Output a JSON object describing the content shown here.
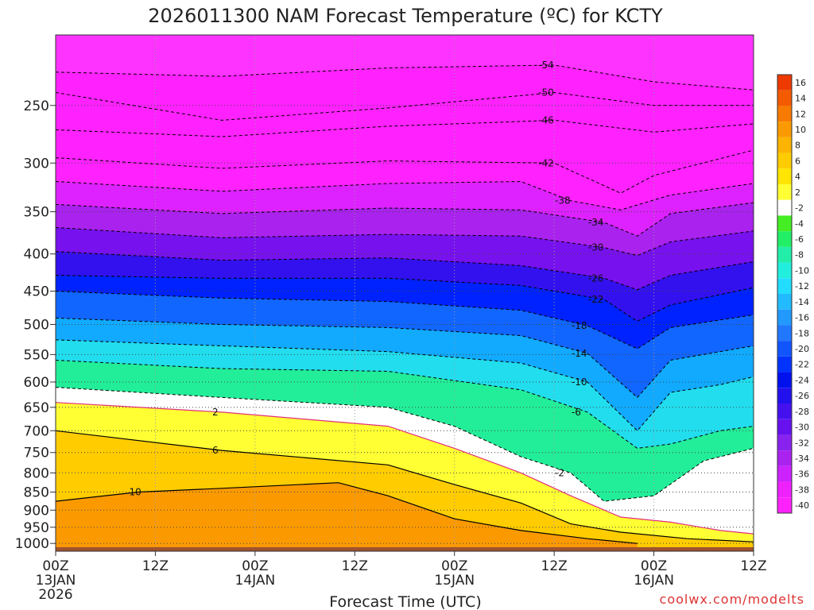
{
  "chart_data": {
    "type": "heatmap",
    "title": "2026011300 NAM Forecast Temperature (ºC) for KCTY",
    "xlabel": "Forecast Time (UTC)",
    "ylabel": "",
    "y_scale": "log-pressure",
    "ylim": [
      1025,
      200
    ],
    "y_ticks": [
      250,
      300,
      350,
      400,
      450,
      500,
      550,
      600,
      650,
      700,
      750,
      800,
      850,
      900,
      950,
      1000
    ],
    "xlim": [
      0,
      84
    ],
    "x_ticks": [
      {
        "hour": 0,
        "label": "00Z",
        "date": "13JAN",
        "year": "2026"
      },
      {
        "hour": 12,
        "label": "12Z",
        "date": "",
        "year": ""
      },
      {
        "hour": 24,
        "label": "00Z",
        "date": "14JAN",
        "year": ""
      },
      {
        "hour": 36,
        "label": "12Z",
        "date": "",
        "year": ""
      },
      {
        "hour": 48,
        "label": "00Z",
        "date": "15JAN",
        "year": ""
      },
      {
        "hour": 60,
        "label": "12Z",
        "date": "",
        "year": ""
      },
      {
        "hour": 72,
        "label": "00Z",
        "date": "16JAN",
        "year": ""
      },
      {
        "hour": 84,
        "label": "12Z",
        "date": "",
        "year": ""
      }
    ],
    "isotherms": [
      {
        "t": -54,
        "p": [
          [
            0,
            225
          ],
          [
            20,
            228
          ],
          [
            40,
            222
          ],
          [
            60,
            220
          ],
          [
            72,
            232
          ],
          [
            84,
            238
          ]
        ]
      },
      {
        "t": -50,
        "p": [
          [
            0,
            240
          ],
          [
            20,
            262
          ],
          [
            40,
            252
          ],
          [
            60,
            240
          ],
          [
            72,
            250
          ],
          [
            84,
            250
          ]
        ]
      },
      {
        "t": -46,
        "p": [
          [
            0,
            270
          ],
          [
            20,
            276
          ],
          [
            40,
            267
          ],
          [
            60,
            262
          ],
          [
            72,
            272
          ],
          [
            84,
            265
          ]
        ]
      },
      {
        "t": -42,
        "p": [
          [
            0,
            295
          ],
          [
            20,
            305
          ],
          [
            40,
            298
          ],
          [
            60,
            300
          ],
          [
            68,
            330
          ],
          [
            72,
            312
          ],
          [
            84,
            288
          ]
        ]
      },
      {
        "t": -38,
        "p": [
          [
            0,
            318
          ],
          [
            20,
            328
          ],
          [
            40,
            320
          ],
          [
            56,
            318
          ],
          [
            62,
            338
          ],
          [
            68,
            348
          ],
          [
            74,
            332
          ],
          [
            84,
            320
          ]
        ]
      },
      {
        "t": -34,
        "p": [
          [
            0,
            342
          ],
          [
            20,
            352
          ],
          [
            40,
            346
          ],
          [
            56,
            348
          ],
          [
            66,
            362
          ],
          [
            70,
            378
          ],
          [
            74,
            352
          ],
          [
            84,
            340
          ]
        ]
      },
      {
        "t": -30,
        "p": [
          [
            0,
            368
          ],
          [
            20,
            380
          ],
          [
            40,
            376
          ],
          [
            56,
            378
          ],
          [
            66,
            392
          ],
          [
            70,
            402
          ],
          [
            74,
            385
          ],
          [
            84,
            372
          ]
        ]
      },
      {
        "t": -26,
        "p": [
          [
            0,
            397
          ],
          [
            20,
            408
          ],
          [
            40,
            405
          ],
          [
            56,
            415
          ],
          [
            66,
            432
          ],
          [
            70,
            448
          ],
          [
            74,
            428
          ],
          [
            84,
            410
          ]
        ]
      },
      {
        "t": -22,
        "p": [
          [
            0,
            428
          ],
          [
            20,
            432
          ],
          [
            40,
            432
          ],
          [
            56,
            442
          ],
          [
            66,
            462
          ],
          [
            70,
            495
          ],
          [
            74,
            470
          ],
          [
            84,
            445
          ]
        ]
      },
      {
        "t": -18,
        "p": [
          [
            0,
            450
          ],
          [
            20,
            460
          ],
          [
            40,
            465
          ],
          [
            56,
            478
          ],
          [
            64,
            502
          ],
          [
            70,
            540
          ],
          [
            74,
            505
          ],
          [
            84,
            485
          ]
        ]
      },
      {
        "t": -14,
        "p": [
          [
            0,
            490
          ],
          [
            20,
            500
          ],
          [
            40,
            505
          ],
          [
            56,
            518
          ],
          [
            64,
            548
          ],
          [
            70,
            630
          ],
          [
            74,
            560
          ],
          [
            84,
            535
          ]
        ]
      },
      {
        "t": -10,
        "p": [
          [
            0,
            525
          ],
          [
            20,
            535
          ],
          [
            40,
            545
          ],
          [
            56,
            565
          ],
          [
            64,
            600
          ],
          [
            70,
            700
          ],
          [
            74,
            620
          ],
          [
            80,
            605
          ],
          [
            84,
            590
          ]
        ]
      },
      {
        "t": -6,
        "p": [
          [
            0,
            560
          ],
          [
            20,
            575
          ],
          [
            40,
            580
          ],
          [
            56,
            615
          ],
          [
            64,
            660
          ],
          [
            70,
            740
          ],
          [
            74,
            730
          ],
          [
            80,
            700
          ],
          [
            84,
            690
          ]
        ]
      },
      {
        "t": -2,
        "p": [
          [
            0,
            610
          ],
          [
            20,
            630
          ],
          [
            40,
            650
          ],
          [
            48,
            690
          ],
          [
            56,
            760
          ],
          [
            62,
            800
          ],
          [
            66,
            875
          ],
          [
            72,
            860
          ],
          [
            78,
            770
          ],
          [
            84,
            740
          ]
        ]
      }
    ],
    "warm_isotherms": [
      {
        "t": 2,
        "p": [
          [
            0,
            640
          ],
          [
            20,
            660
          ],
          [
            40,
            690
          ],
          [
            48,
            740
          ],
          [
            56,
            800
          ],
          [
            62,
            860
          ],
          [
            68,
            920
          ],
          [
            74,
            935
          ],
          [
            80,
            960
          ],
          [
            84,
            970
          ]
        ]
      },
      {
        "t": 6,
        "p": [
          [
            0,
            700
          ],
          [
            20,
            745
          ],
          [
            40,
            780
          ],
          [
            48,
            830
          ],
          [
            56,
            880
          ],
          [
            62,
            940
          ],
          [
            68,
            965
          ],
          [
            76,
            985
          ],
          [
            84,
            995
          ]
        ]
      },
      {
        "t": 10,
        "p": [
          [
            0,
            875
          ],
          [
            10,
            850
          ],
          [
            20,
            840
          ],
          [
            34,
            825
          ],
          [
            40,
            860
          ],
          [
            48,
            925
          ],
          [
            56,
            960
          ],
          [
            64,
            985
          ],
          [
            70,
            1000
          ]
        ]
      }
    ],
    "colorbar": {
      "levels": [
        16,
        14,
        12,
        10,
        8,
        6,
        4,
        2,
        -2,
        -4,
        -6,
        -8,
        -10,
        -12,
        -14,
        -16,
        -18,
        -20,
        -22,
        -24,
        -26,
        -28,
        -30,
        -32,
        -34,
        -36,
        -38,
        -40
      ],
      "colors": [
        "#ee3a00",
        "#f45a00",
        "#f87a00",
        "#fb9a00",
        "#fdb400",
        "#ffcc00",
        "#ffe500",
        "#ffff33",
        "#ffffff",
        "#44ee22",
        "#22ee66",
        "#22eeaa",
        "#22eedd",
        "#22ddff",
        "#22bbff",
        "#2299ff",
        "#2277ff",
        "#1155ff",
        "#0033ff",
        "#0011ee",
        "#2211ee",
        "#4411ee",
        "#6611ee",
        "#8822ee",
        "#aa22ee",
        "#cc22ff",
        "#ee22ff",
        "#ff22ff"
      ]
    }
  },
  "footer": {
    "credit": "coolwx.com/modelts"
  }
}
